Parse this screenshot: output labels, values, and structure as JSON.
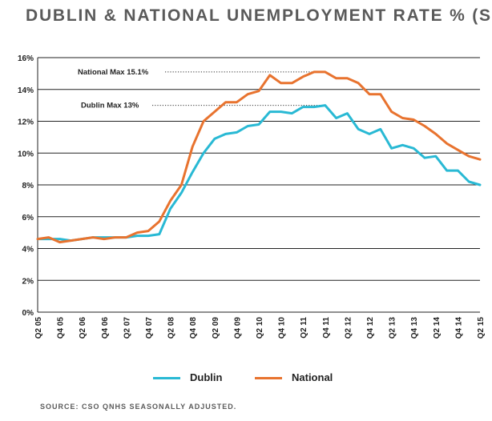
{
  "title": "DUBLIN & NATIONAL UNEMPLOYMENT RATE % (SA)",
  "source": "SOURCE: CSO QNHS SEASONALLY ADJUSTED.",
  "colors": {
    "dublin": "#29b9d4",
    "national": "#e8732f",
    "grid": "#222222"
  },
  "chart_data": {
    "type": "line",
    "title": "DUBLIN & NATIONAL UNEMPLOYMENT RATE % (SA)",
    "xlabel": "",
    "ylabel": "",
    "ylim": [
      0,
      16
    ],
    "y_ticks": [
      "0%",
      "2%",
      "4%",
      "6%",
      "8%",
      "10%",
      "12%",
      "14%",
      "16%"
    ],
    "grid": true,
    "legend_placement": "bottom",
    "x": [
      "Q2 05",
      "Q3 05",
      "Q4 05",
      "Q1 06",
      "Q2 06",
      "Q3 06",
      "Q4 06",
      "Q1 07",
      "Q2 07",
      "Q3 07",
      "Q4 07",
      "Q1 08",
      "Q2 08",
      "Q3 08",
      "Q4 08",
      "Q1 09",
      "Q2 09",
      "Q3 09",
      "Q4 09",
      "Q1 10",
      "Q2 10",
      "Q3 10",
      "Q4 10",
      "Q1 11",
      "Q2 11",
      "Q3 11",
      "Q4 11",
      "Q1 12",
      "Q2 12",
      "Q3 12",
      "Q4 12",
      "Q1 13",
      "Q2 13",
      "Q3 13",
      "Q4 13",
      "Q1 14",
      "Q2 14",
      "Q3 14",
      "Q4 14",
      "Q1 15",
      "Q2 15"
    ],
    "x_tick_labels": [
      "Q2 05",
      "Q4 05",
      "Q2 06",
      "Q4 06",
      "Q2 07",
      "Q4 07",
      "Q2 08",
      "Q4 08",
      "Q2 09",
      "Q4 09",
      "Q2 10",
      "Q4 10",
      "Q2 11",
      "Q4 11",
      "Q2 12",
      "Q4 12",
      "Q2 13",
      "Q4 13",
      "Q2 14",
      "Q4 14",
      "Q2 15"
    ],
    "series": [
      {
        "name": "Dublin",
        "values": [
          4.6,
          4.6,
          4.6,
          4.5,
          4.6,
          4.7,
          4.7,
          4.7,
          4.7,
          4.8,
          4.8,
          4.9,
          6.5,
          7.5,
          8.8,
          10.0,
          10.9,
          11.2,
          11.3,
          11.7,
          11.8,
          12.6,
          12.6,
          12.5,
          12.9,
          12.9,
          13.0,
          12.2,
          12.5,
          11.5,
          11.2,
          11.5,
          10.3,
          10.5,
          10.3,
          9.7,
          9.8,
          8.9,
          8.9,
          8.2,
          8.0
        ]
      },
      {
        "name": "National",
        "values": [
          4.6,
          4.7,
          4.4,
          4.5,
          4.6,
          4.7,
          4.6,
          4.7,
          4.7,
          5.0,
          5.1,
          5.7,
          7.0,
          8.0,
          10.4,
          12.0,
          12.6,
          13.2,
          13.2,
          13.7,
          13.9,
          14.9,
          14.4,
          14.4,
          14.8,
          15.1,
          15.1,
          14.7,
          14.7,
          14.4,
          13.7,
          13.7,
          12.6,
          12.2,
          12.1,
          11.7,
          11.2,
          10.6,
          10.2,
          9.8,
          9.6
        ]
      }
    ],
    "annotations": [
      {
        "text": "National Max 15.1%",
        "y": 15.1
      },
      {
        "text": "Dublin Max 13%",
        "y": 13.0
      }
    ]
  }
}
